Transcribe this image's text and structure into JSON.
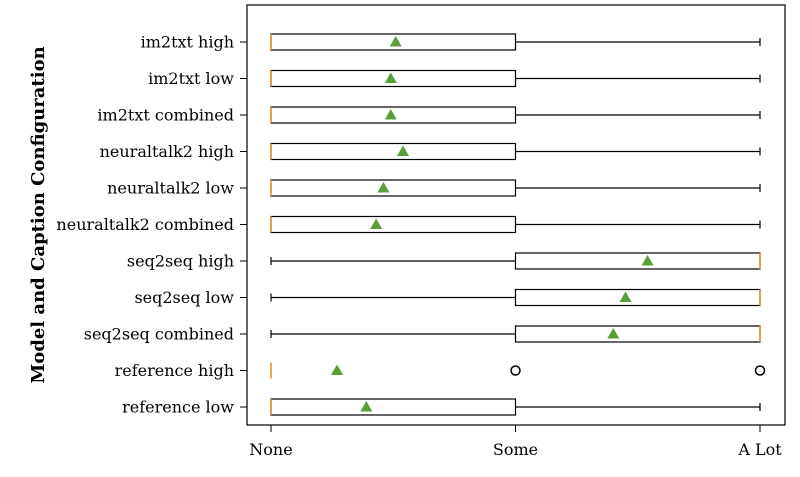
{
  "chart_data": {
    "type": "boxplot",
    "orientation": "horizontal",
    "title": "",
    "xlabel": "",
    "ylabel": "Model and Caption Configuration",
    "x_ticks": [
      {
        "value": 0,
        "label": "None"
      },
      {
        "value": 1,
        "label": "Some"
      },
      {
        "value": 2,
        "label": "A Lot"
      }
    ],
    "xlim": [
      0,
      2
    ],
    "grid": false,
    "legend": "none",
    "colors": {
      "box": "#000000",
      "median": "#e8922e",
      "mean": "#5a9e3a"
    },
    "series": [
      {
        "name": "im2txt high",
        "whisker_low": 0,
        "q1": 0,
        "median": 0,
        "q3": 1,
        "whisker_high": 2,
        "mean": 0.51,
        "outliers": []
      },
      {
        "name": "im2txt low",
        "whisker_low": 0,
        "q1": 0,
        "median": 0,
        "q3": 1,
        "whisker_high": 2,
        "mean": 0.49,
        "outliers": []
      },
      {
        "name": "im2txt combined",
        "whisker_low": 0,
        "q1": 0,
        "median": 0,
        "q3": 1,
        "whisker_high": 2,
        "mean": 0.49,
        "outliers": []
      },
      {
        "name": "neuraltalk2 high",
        "whisker_low": 0,
        "q1": 0,
        "median": 0,
        "q3": 1,
        "whisker_high": 2,
        "mean": 0.54,
        "outliers": []
      },
      {
        "name": "neuraltalk2 low",
        "whisker_low": 0,
        "q1": 0,
        "median": 0,
        "q3": 1,
        "whisker_high": 2,
        "mean": 0.46,
        "outliers": []
      },
      {
        "name": "neuraltalk2 combined",
        "whisker_low": 0,
        "q1": 0,
        "median": 0,
        "q3": 1,
        "whisker_high": 2,
        "mean": 0.43,
        "outliers": []
      },
      {
        "name": "seq2seq high",
        "whisker_low": 0,
        "q1": 1,
        "median": 2,
        "q3": 2,
        "whisker_high": 2,
        "mean": 1.54,
        "outliers": []
      },
      {
        "name": "seq2seq low",
        "whisker_low": 0,
        "q1": 1,
        "median": 2,
        "q3": 2,
        "whisker_high": 2,
        "mean": 1.45,
        "outliers": []
      },
      {
        "name": "seq2seq combined",
        "whisker_low": 0,
        "q1": 1,
        "median": 2,
        "q3": 2,
        "whisker_high": 2,
        "mean": 1.4,
        "outliers": []
      },
      {
        "name": "reference high",
        "whisker_low": 0,
        "q1": 0,
        "median": 0,
        "q3": 0,
        "whisker_high": 0,
        "mean": 0.27,
        "outliers": [
          1,
          2
        ]
      },
      {
        "name": "reference low",
        "whisker_low": 0,
        "q1": 0,
        "median": 0,
        "q3": 1,
        "whisker_high": 2,
        "mean": 0.39,
        "outliers": []
      }
    ]
  }
}
